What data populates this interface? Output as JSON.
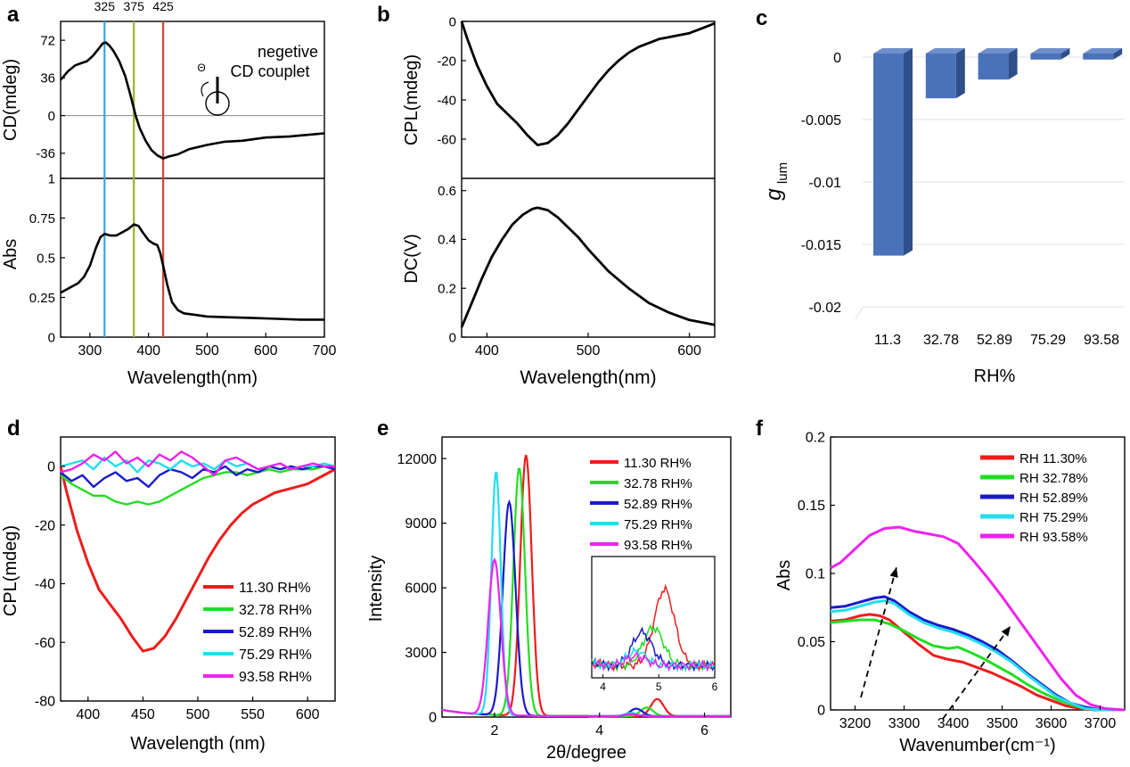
{
  "panels": {
    "a": "a",
    "b": "b",
    "c": "c",
    "d": "d",
    "e": "e",
    "f": "f"
  },
  "chart_data": [
    {
      "id": "a_top",
      "type": "line",
      "ylabel": "CD(mdeg)",
      "xlim": [
        250,
        700
      ],
      "ylim": [
        -60,
        90
      ],
      "yticks": [
        72,
        36,
        0,
        -36
      ],
      "markers": [
        {
          "x": 325,
          "label": "325",
          "color": "#3aa6d8"
        },
        {
          "x": 375,
          "label": "375",
          "color": "#9cb22e"
        },
        {
          "x": 425,
          "label": "425",
          "color": "#d0463a"
        }
      ],
      "annotation": [
        "negetive",
        "CD couplet"
      ],
      "annotation_symbol": "Θ",
      "series": [
        {
          "name": "CD",
          "color": "#000000",
          "x": [
            250,
            262,
            275,
            285,
            295,
            305,
            315,
            322,
            327,
            333,
            340,
            350,
            360,
            370,
            378,
            385,
            395,
            405,
            415,
            425,
            435,
            450,
            470,
            500,
            530,
            560,
            600,
            640,
            680,
            700
          ],
          "y": [
            34,
            42,
            48,
            50,
            52,
            57,
            64,
            69,
            70,
            67,
            62,
            52,
            38,
            18,
            0,
            -12,
            -24,
            -33,
            -38,
            -41,
            -39,
            -37,
            -32,
            -28,
            -25,
            -24,
            -21,
            -20,
            -18,
            -17
          ]
        }
      ]
    },
    {
      "id": "a_bottom",
      "type": "line",
      "xlabel": "Wavelength(nm)",
      "ylabel": "Abs",
      "xlim": [
        250,
        700
      ],
      "ylim": [
        0,
        1
      ],
      "xticks": [
        300,
        400,
        500,
        600,
        700
      ],
      "yticks": [
        1,
        0.75,
        0.5,
        0.25,
        0
      ],
      "series": [
        {
          "name": "Abs",
          "color": "#000000",
          "x": [
            250,
            260,
            270,
            280,
            290,
            300,
            310,
            318,
            325,
            335,
            345,
            355,
            365,
            375,
            383,
            390,
            400,
            408,
            415,
            420,
            425,
            432,
            440,
            450,
            460,
            480,
            500,
            540,
            580,
            620,
            660,
            700
          ],
          "y": [
            0.28,
            0.3,
            0.32,
            0.34,
            0.38,
            0.45,
            0.56,
            0.63,
            0.65,
            0.64,
            0.64,
            0.66,
            0.68,
            0.71,
            0.7,
            0.66,
            0.61,
            0.59,
            0.58,
            0.53,
            0.45,
            0.33,
            0.22,
            0.17,
            0.15,
            0.14,
            0.13,
            0.125,
            0.12,
            0.115,
            0.11,
            0.11
          ]
        }
      ]
    },
    {
      "id": "b_top",
      "type": "line",
      "ylabel": "CPL(mdeg)",
      "xlim": [
        375,
        625
      ],
      "ylim": [
        -80,
        0
      ],
      "yticks": [
        0,
        -20,
        -40,
        -60
      ],
      "series": [
        {
          "name": "CPL",
          "color": "#000000",
          "x": [
            375,
            380,
            390,
            400,
            410,
            420,
            430,
            440,
            450,
            460,
            470,
            480,
            490,
            500,
            510,
            520,
            530,
            540,
            550,
            560,
            570,
            580,
            590,
            600,
            610,
            620,
            625
          ],
          "y": [
            0,
            -8,
            -22,
            -33,
            -42,
            -47,
            -52,
            -58,
            -63,
            -62,
            -58,
            -52,
            -45,
            -38,
            -31,
            -25,
            -20,
            -16,
            -13,
            -11,
            -9,
            -8,
            -7,
            -6,
            -4,
            -2,
            -1
          ]
        }
      ]
    },
    {
      "id": "b_bottom",
      "type": "line",
      "xlabel": "Wavelength(nm)",
      "ylabel": "DC(V)",
      "xlim": [
        375,
        625
      ],
      "ylim": [
        0,
        0.65
      ],
      "xticks": [
        400,
        500,
        600
      ],
      "yticks": [
        0.6,
        0.4,
        0.2,
        0
      ],
      "series": [
        {
          "name": "DC",
          "color": "#000000",
          "x": [
            375,
            385,
            395,
            405,
            415,
            425,
            435,
            445,
            450,
            460,
            470,
            480,
            490,
            500,
            520,
            540,
            560,
            580,
            600,
            625
          ],
          "y": [
            0.04,
            0.14,
            0.24,
            0.33,
            0.4,
            0.46,
            0.5,
            0.525,
            0.53,
            0.52,
            0.49,
            0.45,
            0.41,
            0.36,
            0.27,
            0.2,
            0.14,
            0.1,
            0.07,
            0.05
          ]
        }
      ]
    },
    {
      "id": "c",
      "type": "bar",
      "xlabel": "RH%",
      "ylabel": "g",
      "ylabel_sub": "lum",
      "ylim": [
        -0.02,
        0
      ],
      "yticks": [
        "0",
        "-0.005",
        "-0.01",
        "-0.015",
        "-0.02"
      ],
      "categories": [
        "11.3",
        "32.78",
        "52.89",
        "75.29",
        "93.58"
      ],
      "values": [
        -0.0159,
        -0.0033,
        -0.0018,
        -0.0002,
        -0.0002
      ],
      "color": "#4a72b8"
    },
    {
      "id": "d",
      "type": "line",
      "xlabel": "Wavelength (nm)",
      "ylabel": "CPL(mdeg)",
      "xlim": [
        375,
        625
      ],
      "ylim": [
        -80,
        10
      ],
      "xticks": [
        400,
        450,
        500,
        550,
        600
      ],
      "yticks": [
        0,
        -20,
        -40,
        -60,
        -80
      ],
      "series": [
        {
          "name": "11.30 RH%",
          "color": "#ee1c1c",
          "x": [
            375,
            380,
            390,
            400,
            410,
            420,
            430,
            440,
            450,
            460,
            470,
            480,
            490,
            500,
            510,
            520,
            530,
            540,
            550,
            560,
            570,
            580,
            590,
            600,
            610,
            620,
            625
          ],
          "y": [
            0,
            -8,
            -22,
            -33,
            -42,
            -47,
            -52,
            -58,
            -63,
            -62,
            -58,
            -52,
            -45,
            -38,
            -31,
            -25,
            -20,
            -16,
            -13,
            -11,
            -9,
            -8,
            -7,
            -6,
            -4,
            -2,
            -1
          ]
        },
        {
          "name": "32.78 RH%",
          "color": "#22dd22",
          "x": [
            375,
            385,
            395,
            405,
            415,
            425,
            435,
            445,
            455,
            465,
            475,
            485,
            495,
            505,
            515,
            525,
            535,
            545,
            555,
            565,
            575,
            585,
            595,
            605,
            615,
            625
          ],
          "y": [
            -3,
            -6,
            -8,
            -10,
            -10,
            -12,
            -13,
            -12,
            -13,
            -12,
            -10,
            -8,
            -6,
            -4,
            -3,
            -2,
            -2,
            -3,
            -2,
            -1,
            -2,
            -1,
            -1,
            -1,
            0,
            0
          ]
        },
        {
          "name": "52.89 RH%",
          "color": "#1a1acc",
          "x": [
            375,
            385,
            395,
            405,
            415,
            425,
            435,
            445,
            455,
            465,
            475,
            485,
            495,
            505,
            515,
            525,
            535,
            545,
            555,
            565,
            575,
            585,
            595,
            605,
            615,
            625
          ],
          "y": [
            -2,
            -5,
            -3,
            -7,
            -4,
            -2,
            -5,
            -4,
            -7,
            -3,
            -1,
            -2,
            -4,
            -1,
            -2,
            0,
            -3,
            -1,
            -2,
            0,
            -1,
            0,
            -1,
            0,
            0,
            -1
          ]
        },
        {
          "name": "75.29 RH%",
          "color": "#22ddee",
          "x": [
            375,
            385,
            395,
            405,
            415,
            425,
            435,
            445,
            455,
            465,
            475,
            485,
            495,
            505,
            515,
            525,
            535,
            545,
            555,
            565,
            575,
            585,
            595,
            605,
            615,
            625
          ],
          "y": [
            0,
            1,
            2,
            -1,
            3,
            0,
            2,
            -2,
            2,
            1,
            -1,
            2,
            0,
            1,
            -1,
            2,
            0,
            1,
            -1,
            0,
            1,
            -1,
            0,
            0,
            1,
            0
          ]
        },
        {
          "name": "93.58 RH%",
          "color": "#ee22ee",
          "x": [
            375,
            385,
            395,
            405,
            415,
            425,
            435,
            445,
            455,
            465,
            475,
            485,
            495,
            505,
            515,
            525,
            535,
            545,
            555,
            565,
            575,
            585,
            595,
            605,
            615,
            625
          ],
          "y": [
            -2,
            -1,
            1,
            4,
            2,
            5,
            1,
            3,
            0,
            4,
            2,
            5,
            3,
            0,
            -3,
            2,
            3,
            1,
            -1,
            0,
            1,
            -1,
            0,
            1,
            0,
            0
          ]
        }
      ]
    },
    {
      "id": "e",
      "type": "line",
      "xlabel": "2θ/degree",
      "ylabel": "Intensity",
      "xlim": [
        1,
        6.5
      ],
      "ylim": [
        0,
        13000
      ],
      "xticks": [
        2,
        4,
        6
      ],
      "yticks": [
        0,
        3000,
        6000,
        9000,
        12000
      ],
      "series": [
        {
          "name": "11.30 RH%",
          "color": "#ee1c1c",
          "peak": 2.6,
          "height": 12100,
          "width": 0.11,
          "minor": 5.1,
          "minor_h": 800
        },
        {
          "name": "32.78 RH%",
          "color": "#22dd22",
          "peak": 2.47,
          "height": 11500,
          "width": 0.11,
          "minor": 4.9,
          "minor_h": 400
        },
        {
          "name": "52.89 RH%",
          "color": "#1a1acc",
          "peak": 2.28,
          "height": 9900,
          "width": 0.12,
          "minor": 4.7,
          "minor_h": 350
        },
        {
          "name": "75.29 RH%",
          "color": "#22ddee",
          "peak": 2.03,
          "height": 11300,
          "width": 0.09,
          "minor": 4.6,
          "minor_h": 150
        },
        {
          "name": "93.58 RH%",
          "color": "#ee22ee",
          "peak": 2.0,
          "height": 7200,
          "width": 0.12,
          "minor": 4.6,
          "minor_h": 100
        }
      ],
      "inset": {
        "xlim": [
          3.8,
          6
        ],
        "xticks": [
          4,
          5,
          6
        ]
      }
    },
    {
      "id": "f",
      "type": "line",
      "xlabel": "Wavenumber(cm⁻¹)",
      "ylabel": "Abs",
      "xlim": [
        3150,
        3750
      ],
      "ylim": [
        0,
        0.2
      ],
      "xticks": [
        3200,
        3300,
        3400,
        3500,
        3600,
        3700
      ],
      "yticks": [
        0,
        0.05,
        0.1,
        0.15,
        0.2
      ],
      "series": [
        {
          "name": "RH 11.30%",
          "color": "#ee1c1c",
          "x": [
            3150,
            3180,
            3210,
            3230,
            3250,
            3270,
            3300,
            3330,
            3360,
            3390,
            3420,
            3450,
            3480,
            3510,
            3540,
            3570,
            3600,
            3630,
            3660,
            3690,
            3720,
            3750
          ],
          "y": [
            0.065,
            0.066,
            0.069,
            0.07,
            0.069,
            0.066,
            0.057,
            0.048,
            0.04,
            0.037,
            0.035,
            0.031,
            0.027,
            0.022,
            0.017,
            0.011,
            0.007,
            0.003,
            0.001,
            0,
            0,
            0
          ]
        },
        {
          "name": "RH 32.78%",
          "color": "#22dd22",
          "x": [
            3150,
            3180,
            3210,
            3240,
            3270,
            3300,
            3330,
            3360,
            3390,
            3410,
            3430,
            3460,
            3490,
            3520,
            3550,
            3580,
            3610,
            3640,
            3670,
            3700,
            3750
          ],
          "y": [
            0.064,
            0.065,
            0.066,
            0.066,
            0.063,
            0.058,
            0.052,
            0.047,
            0.045,
            0.046,
            0.043,
            0.038,
            0.032,
            0.026,
            0.019,
            0.013,
            0.008,
            0.004,
            0.001,
            0,
            0
          ]
        },
        {
          "name": "RH 52.89%",
          "color": "#1a1acc",
          "x": [
            3150,
            3180,
            3210,
            3240,
            3260,
            3280,
            3310,
            3340,
            3370,
            3400,
            3430,
            3460,
            3490,
            3520,
            3550,
            3580,
            3610,
            3640,
            3670,
            3700,
            3750
          ],
          "y": [
            0.075,
            0.076,
            0.079,
            0.082,
            0.083,
            0.08,
            0.072,
            0.066,
            0.062,
            0.059,
            0.055,
            0.05,
            0.044,
            0.036,
            0.027,
            0.019,
            0.011,
            0.005,
            0.002,
            0,
            0
          ]
        },
        {
          "name": "RH 75.29%",
          "color": "#22ddee",
          "x": [
            3150,
            3180,
            3210,
            3240,
            3260,
            3280,
            3310,
            3340,
            3370,
            3400,
            3430,
            3460,
            3490,
            3520,
            3550,
            3580,
            3610,
            3640,
            3670,
            3700,
            3750
          ],
          "y": [
            0.072,
            0.073,
            0.076,
            0.079,
            0.08,
            0.078,
            0.07,
            0.064,
            0.06,
            0.057,
            0.053,
            0.048,
            0.042,
            0.035,
            0.026,
            0.018,
            0.01,
            0.005,
            0.001,
            0,
            0
          ]
        },
        {
          "name": "RH 93.58%",
          "color": "#ee22ee",
          "x": [
            3150,
            3170,
            3200,
            3230,
            3260,
            3290,
            3320,
            3350,
            3380,
            3410,
            3440,
            3470,
            3500,
            3530,
            3560,
            3590,
            3620,
            3650,
            3680,
            3710,
            3750
          ],
          "y": [
            0.104,
            0.108,
            0.118,
            0.128,
            0.133,
            0.134,
            0.131,
            0.129,
            0.127,
            0.122,
            0.11,
            0.097,
            0.083,
            0.068,
            0.053,
            0.038,
            0.023,
            0.011,
            0.004,
            0.001,
            0
          ]
        }
      ]
    }
  ]
}
